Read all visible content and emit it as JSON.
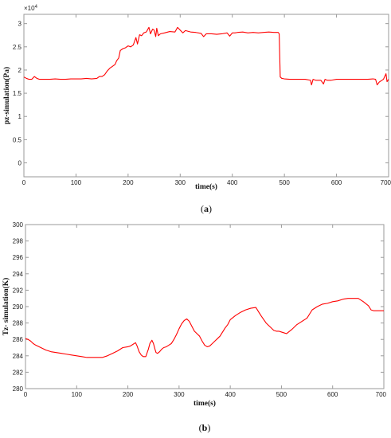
{
  "chart_data": [
    {
      "type": "line",
      "ylabel": "pz-simulation(Pa)",
      "xlabel": "time(s)",
      "exponent": "×10",
      "exponent_power": "4",
      "xlim": [
        0,
        700
      ],
      "ylim": [
        -0.3,
        3.2
      ],
      "x_ticks": [
        "0",
        "100",
        "200",
        "300",
        "400",
        "500",
        "600",
        "700"
      ],
      "y_ticks": [
        "0",
        "0.5",
        "1",
        "1.5",
        "2",
        "2.5",
        "3"
      ],
      "caption_open": "(",
      "caption_letter": "a",
      "caption_close": ")",
      "series": [
        {
          "color": "#ff0000",
          "x": [
            0,
            5,
            10,
            15,
            20,
            25,
            30,
            40,
            50,
            60,
            70,
            80,
            90,
            100,
            110,
            120,
            130,
            140,
            145,
            150,
            155,
            160,
            165,
            170,
            175,
            178,
            182,
            185,
            190,
            195,
            200,
            205,
            210,
            215,
            218,
            222,
            226,
            230,
            235,
            240,
            243,
            247,
            250,
            253,
            255,
            258,
            262,
            270,
            280,
            290,
            295,
            300,
            305,
            310,
            320,
            330,
            340,
            345,
            350,
            360,
            370,
            380,
            390,
            395,
            400,
            405,
            410,
            420,
            430,
            440,
            450,
            460,
            470,
            480,
            488,
            490,
            492,
            495,
            500,
            510,
            520,
            530,
            540,
            550,
            552,
            555,
            560,
            570,
            575,
            578,
            582,
            590,
            600,
            610,
            620,
            630,
            640,
            650,
            660,
            670,
            675,
            678,
            682,
            690,
            695,
            697,
            700
          ],
          "y": [
            1.85,
            1.82,
            1.8,
            1.8,
            1.86,
            1.82,
            1.8,
            1.8,
            1.8,
            1.81,
            1.8,
            1.8,
            1.81,
            1.81,
            1.81,
            1.82,
            1.81,
            1.82,
            1.86,
            1.86,
            1.9,
            1.98,
            2.04,
            2.08,
            2.12,
            2.2,
            2.26,
            2.42,
            2.46,
            2.48,
            2.52,
            2.5,
            2.54,
            2.7,
            2.56,
            2.76,
            2.74,
            2.8,
            2.82,
            2.92,
            2.78,
            2.88,
            2.86,
            2.72,
            2.9,
            2.74,
            2.78,
            2.8,
            2.83,
            2.82,
            2.92,
            2.86,
            2.8,
            2.85,
            2.82,
            2.81,
            2.79,
            2.72,
            2.78,
            2.78,
            2.77,
            2.78,
            2.8,
            2.73,
            2.8,
            2.8,
            2.81,
            2.82,
            2.8,
            2.81,
            2.8,
            2.81,
            2.82,
            2.81,
            2.81,
            2.78,
            1.85,
            1.82,
            1.81,
            1.8,
            1.8,
            1.8,
            1.8,
            1.78,
            1.68,
            1.8,
            1.78,
            1.78,
            1.7,
            1.8,
            1.78,
            1.78,
            1.8,
            1.8,
            1.8,
            1.8,
            1.8,
            1.8,
            1.8,
            1.81,
            1.8,
            1.68,
            1.74,
            1.8,
            1.92,
            1.75,
            1.8
          ]
        }
      ]
    },
    {
      "type": "line",
      "ylabel": "Tz- simulation(K)",
      "xlabel": "time(s)",
      "xlim": [
        0,
        700
      ],
      "ylim": [
        280,
        300
      ],
      "x_ticks": [
        "0",
        "100",
        "200",
        "300",
        "400",
        "500",
        "600",
        "700"
      ],
      "y_ticks": [
        "280",
        "282",
        "284",
        "286",
        "288",
        "290",
        "292",
        "294",
        "296",
        "298",
        "300"
      ],
      "caption_open": "(",
      "caption_letter": "b",
      "caption_close": ")",
      "series": [
        {
          "color": "#ff0000",
          "x": [
            0,
            5,
            10,
            15,
            20,
            30,
            40,
            50,
            60,
            70,
            80,
            90,
            100,
            110,
            120,
            130,
            140,
            150,
            160,
            170,
            180,
            190,
            200,
            205,
            210,
            215,
            218,
            222,
            226,
            230,
            235,
            240,
            243,
            247,
            250,
            253,
            255,
            258,
            262,
            266,
            270,
            275,
            280,
            285,
            290,
            295,
            300,
            305,
            310,
            315,
            320,
            325,
            330,
            335,
            340,
            345,
            350,
            355,
            360,
            365,
            370,
            375,
            380,
            385,
            390,
            395,
            400,
            410,
            420,
            430,
            440,
            450,
            460,
            470,
            480,
            485,
            490,
            495,
            500,
            505,
            510,
            520,
            530,
            540,
            550,
            555,
            560,
            570,
            580,
            590,
            600,
            610,
            620,
            630,
            640,
            650,
            660,
            670,
            675,
            680,
            685,
            690,
            695,
            700
          ],
          "y": [
            286.1,
            286.0,
            285.8,
            285.5,
            285.3,
            285.0,
            284.7,
            284.5,
            284.4,
            284.3,
            284.2,
            284.1,
            284.0,
            283.9,
            283.8,
            283.8,
            283.8,
            283.8,
            284.0,
            284.3,
            284.6,
            285.0,
            285.1,
            285.2,
            285.4,
            285.6,
            285.2,
            284.5,
            284.1,
            283.9,
            283.9,
            284.8,
            285.5,
            285.9,
            285.5,
            284.8,
            284.4,
            284.3,
            284.5,
            284.8,
            285.0,
            285.1,
            285.3,
            285.5,
            286.0,
            286.6,
            287.3,
            287.9,
            288.3,
            288.5,
            288.2,
            287.6,
            287.0,
            286.7,
            286.4,
            285.8,
            285.3,
            285.1,
            285.2,
            285.5,
            285.8,
            286.1,
            286.4,
            286.9,
            287.4,
            287.8,
            288.4,
            288.9,
            289.3,
            289.6,
            289.8,
            289.9,
            288.9,
            288.0,
            287.4,
            287.1,
            287.0,
            287.0,
            286.9,
            286.8,
            286.7,
            287.2,
            287.8,
            288.2,
            288.6,
            289.1,
            289.6,
            290.0,
            290.3,
            290.4,
            290.6,
            290.7,
            290.9,
            291.0,
            291.0,
            291.0,
            290.6,
            290.1,
            289.6,
            289.5,
            289.5,
            289.5,
            289.5,
            289.5
          ]
        }
      ]
    }
  ]
}
